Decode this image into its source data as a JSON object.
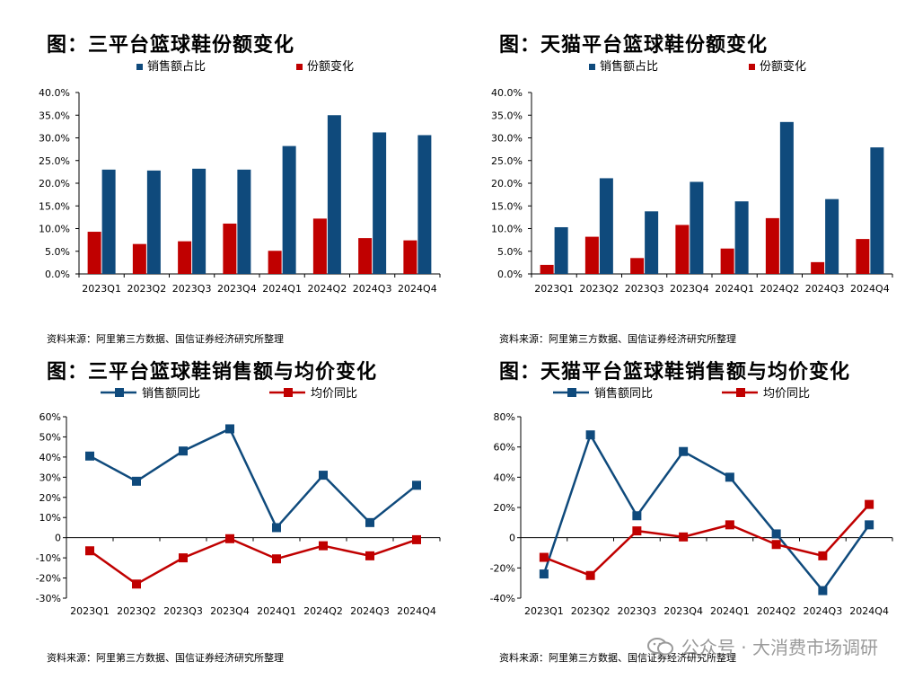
{
  "watermark": "公众号 · 大消费市场调研",
  "chart_data": [
    {
      "type": "bar",
      "title": "图：三平台篮球鞋份额变化",
      "source": "资料来源：阿里第三方数据、国信证券经济研究所整理",
      "categories": [
        "2023Q1",
        "2023Q2",
        "2023Q3",
        "2023Q4",
        "2024Q1",
        "2024Q2",
        "2024Q3",
        "2024Q4"
      ],
      "ylim": [
        0,
        40
      ],
      "yticks": [
        0,
        5,
        10,
        15,
        20,
        25,
        30,
        35,
        40
      ],
      "ytick_labels": [
        "0.0%",
        "5.0%",
        "10.0%",
        "15.0%",
        "20.0%",
        "25.0%",
        "30.0%",
        "35.0%",
        "40.0%"
      ],
      "series": [
        {
          "name": "份额变化",
          "color": "#c00000",
          "values": [
            9.3,
            6.6,
            7.2,
            11.1,
            5.1,
            12.2,
            7.9,
            7.4
          ]
        },
        {
          "name": "销售额占比",
          "color": "#0f4a7c",
          "values": [
            23.0,
            22.8,
            23.2,
            23.0,
            28.2,
            35.0,
            31.2,
            30.6
          ]
        }
      ],
      "legend": [
        "销售额占比",
        "份额变化"
      ]
    },
    {
      "type": "bar",
      "title": "图：天猫平台篮球鞋份额变化",
      "source": "资料来源：阿里第三方数据、国信证券经济研究所整理",
      "categories": [
        "2023Q1",
        "2023Q2",
        "2023Q3",
        "2023Q4",
        "2024Q1",
        "2024Q2",
        "2024Q3",
        "2024Q4"
      ],
      "ylim": [
        0,
        40
      ],
      "yticks": [
        0,
        5,
        10,
        15,
        20,
        25,
        30,
        35,
        40
      ],
      "ytick_labels": [
        "0.0%",
        "5.0%",
        "10.0%",
        "15.0%",
        "20.0%",
        "25.0%",
        "30.0%",
        "35.0%",
        "40.0%"
      ],
      "series": [
        {
          "name": "份额变化",
          "color": "#c00000",
          "values": [
            2.0,
            8.2,
            3.5,
            10.8,
            5.6,
            12.3,
            2.6,
            7.7
          ]
        },
        {
          "name": "销售额占比",
          "color": "#0f4a7c",
          "values": [
            10.3,
            21.1,
            13.8,
            20.3,
            16.0,
            33.5,
            16.5,
            27.9
          ]
        }
      ],
      "legend": [
        "销售额占比",
        "份额变化"
      ]
    },
    {
      "type": "line",
      "title": "图：三平台篮球鞋销售额与均价变化",
      "source": "资料来源：阿里第三方数据、国信证券经济研究所整理",
      "categories": [
        "2023Q1",
        "2023Q2",
        "2023Q3",
        "2023Q4",
        "2024Q1",
        "2024Q2",
        "2024Q3",
        "2024Q4"
      ],
      "ylim": [
        -30,
        60
      ],
      "yticks": [
        -30,
        -20,
        -10,
        0,
        10,
        20,
        30,
        40,
        50,
        60
      ],
      "ytick_labels": [
        "-30%",
        "-20%",
        "-10%",
        "0",
        "10%",
        "20%",
        "30%",
        "40%",
        "50%",
        "60%"
      ],
      "series": [
        {
          "name": "销售额同比",
          "color": "#0f4a7c",
          "values": [
            40.5,
            28,
            43,
            54,
            5,
            31,
            7.5,
            26
          ]
        },
        {
          "name": "均价同比",
          "color": "#c00000",
          "values": [
            -6.5,
            -23,
            -10,
            -0.5,
            -10.5,
            -4,
            -9,
            -1
          ]
        }
      ],
      "legend": [
        "销售额同比",
        "均价同比"
      ]
    },
    {
      "type": "line",
      "title": "图：天猫平台篮球鞋销售额与均价变化",
      "source": "资料来源：阿里第三方数据、国信证券经济研究所整理",
      "categories": [
        "2023Q1",
        "2023Q2",
        "2023Q3",
        "2023Q4",
        "2024Q1",
        "2024Q2",
        "2024Q3",
        "2024Q4"
      ],
      "ylim": [
        -40,
        80
      ],
      "yticks": [
        -40,
        -20,
        0,
        20,
        40,
        60,
        80
      ],
      "ytick_labels": [
        "-40%",
        "-20%",
        "0",
        "20%",
        "40%",
        "60%",
        "80%"
      ],
      "series": [
        {
          "name": "销售额同比",
          "color": "#0f4a7c",
          "values": [
            -24,
            68,
            14.5,
            57,
            40,
            2.5,
            -35,
            8.5
          ]
        },
        {
          "name": "均价同比",
          "color": "#c00000",
          "values": [
            -13,
            -25,
            4.5,
            0.5,
            8.5,
            -4.5,
            -12,
            22
          ]
        }
      ],
      "legend": [
        "销售额同比",
        "均价同比"
      ]
    }
  ]
}
